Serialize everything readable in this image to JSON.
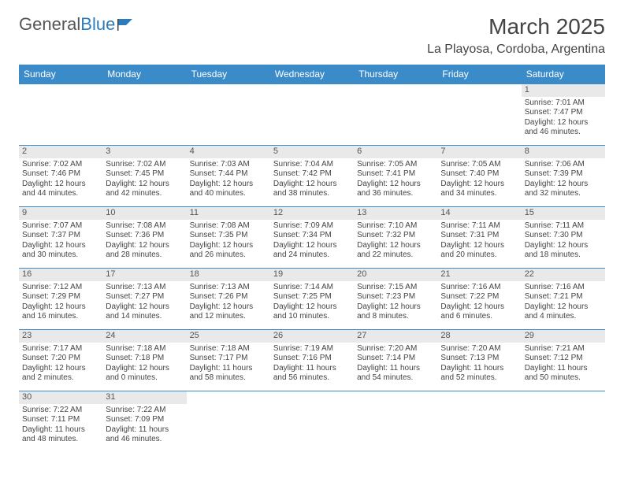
{
  "brand": {
    "part1": "General",
    "part2": "Blue",
    "logo_color": "#2b7bbd"
  },
  "title": "March 2025",
  "location": "La Playosa, Cordoba, Argentina",
  "colors": {
    "header_bg": "#3b8bc9",
    "daynum_bg": "#e9e9e9",
    "border": "#3b8bc9"
  },
  "weekdays": [
    "Sunday",
    "Monday",
    "Tuesday",
    "Wednesday",
    "Thursday",
    "Friday",
    "Saturday"
  ],
  "weeks": [
    [
      null,
      null,
      null,
      null,
      null,
      null,
      {
        "n": "1",
        "sr": "Sunrise: 7:01 AM",
        "ss": "Sunset: 7:47 PM",
        "dl": "Daylight: 12 hours and 46 minutes."
      }
    ],
    [
      {
        "n": "2",
        "sr": "Sunrise: 7:02 AM",
        "ss": "Sunset: 7:46 PM",
        "dl": "Daylight: 12 hours and 44 minutes."
      },
      {
        "n": "3",
        "sr": "Sunrise: 7:02 AM",
        "ss": "Sunset: 7:45 PM",
        "dl": "Daylight: 12 hours and 42 minutes."
      },
      {
        "n": "4",
        "sr": "Sunrise: 7:03 AM",
        "ss": "Sunset: 7:44 PM",
        "dl": "Daylight: 12 hours and 40 minutes."
      },
      {
        "n": "5",
        "sr": "Sunrise: 7:04 AM",
        "ss": "Sunset: 7:42 PM",
        "dl": "Daylight: 12 hours and 38 minutes."
      },
      {
        "n": "6",
        "sr": "Sunrise: 7:05 AM",
        "ss": "Sunset: 7:41 PM",
        "dl": "Daylight: 12 hours and 36 minutes."
      },
      {
        "n": "7",
        "sr": "Sunrise: 7:05 AM",
        "ss": "Sunset: 7:40 PM",
        "dl": "Daylight: 12 hours and 34 minutes."
      },
      {
        "n": "8",
        "sr": "Sunrise: 7:06 AM",
        "ss": "Sunset: 7:39 PM",
        "dl": "Daylight: 12 hours and 32 minutes."
      }
    ],
    [
      {
        "n": "9",
        "sr": "Sunrise: 7:07 AM",
        "ss": "Sunset: 7:37 PM",
        "dl": "Daylight: 12 hours and 30 minutes."
      },
      {
        "n": "10",
        "sr": "Sunrise: 7:08 AM",
        "ss": "Sunset: 7:36 PM",
        "dl": "Daylight: 12 hours and 28 minutes."
      },
      {
        "n": "11",
        "sr": "Sunrise: 7:08 AM",
        "ss": "Sunset: 7:35 PM",
        "dl": "Daylight: 12 hours and 26 minutes."
      },
      {
        "n": "12",
        "sr": "Sunrise: 7:09 AM",
        "ss": "Sunset: 7:34 PM",
        "dl": "Daylight: 12 hours and 24 minutes."
      },
      {
        "n": "13",
        "sr": "Sunrise: 7:10 AM",
        "ss": "Sunset: 7:32 PM",
        "dl": "Daylight: 12 hours and 22 minutes."
      },
      {
        "n": "14",
        "sr": "Sunrise: 7:11 AM",
        "ss": "Sunset: 7:31 PM",
        "dl": "Daylight: 12 hours and 20 minutes."
      },
      {
        "n": "15",
        "sr": "Sunrise: 7:11 AM",
        "ss": "Sunset: 7:30 PM",
        "dl": "Daylight: 12 hours and 18 minutes."
      }
    ],
    [
      {
        "n": "16",
        "sr": "Sunrise: 7:12 AM",
        "ss": "Sunset: 7:29 PM",
        "dl": "Daylight: 12 hours and 16 minutes."
      },
      {
        "n": "17",
        "sr": "Sunrise: 7:13 AM",
        "ss": "Sunset: 7:27 PM",
        "dl": "Daylight: 12 hours and 14 minutes."
      },
      {
        "n": "18",
        "sr": "Sunrise: 7:13 AM",
        "ss": "Sunset: 7:26 PM",
        "dl": "Daylight: 12 hours and 12 minutes."
      },
      {
        "n": "19",
        "sr": "Sunrise: 7:14 AM",
        "ss": "Sunset: 7:25 PM",
        "dl": "Daylight: 12 hours and 10 minutes."
      },
      {
        "n": "20",
        "sr": "Sunrise: 7:15 AM",
        "ss": "Sunset: 7:23 PM",
        "dl": "Daylight: 12 hours and 8 minutes."
      },
      {
        "n": "21",
        "sr": "Sunrise: 7:16 AM",
        "ss": "Sunset: 7:22 PM",
        "dl": "Daylight: 12 hours and 6 minutes."
      },
      {
        "n": "22",
        "sr": "Sunrise: 7:16 AM",
        "ss": "Sunset: 7:21 PM",
        "dl": "Daylight: 12 hours and 4 minutes."
      }
    ],
    [
      {
        "n": "23",
        "sr": "Sunrise: 7:17 AM",
        "ss": "Sunset: 7:20 PM",
        "dl": "Daylight: 12 hours and 2 minutes."
      },
      {
        "n": "24",
        "sr": "Sunrise: 7:18 AM",
        "ss": "Sunset: 7:18 PM",
        "dl": "Daylight: 12 hours and 0 minutes."
      },
      {
        "n": "25",
        "sr": "Sunrise: 7:18 AM",
        "ss": "Sunset: 7:17 PM",
        "dl": "Daylight: 11 hours and 58 minutes."
      },
      {
        "n": "26",
        "sr": "Sunrise: 7:19 AM",
        "ss": "Sunset: 7:16 PM",
        "dl": "Daylight: 11 hours and 56 minutes."
      },
      {
        "n": "27",
        "sr": "Sunrise: 7:20 AM",
        "ss": "Sunset: 7:14 PM",
        "dl": "Daylight: 11 hours and 54 minutes."
      },
      {
        "n": "28",
        "sr": "Sunrise: 7:20 AM",
        "ss": "Sunset: 7:13 PM",
        "dl": "Daylight: 11 hours and 52 minutes."
      },
      {
        "n": "29",
        "sr": "Sunrise: 7:21 AM",
        "ss": "Sunset: 7:12 PM",
        "dl": "Daylight: 11 hours and 50 minutes."
      }
    ],
    [
      {
        "n": "30",
        "sr": "Sunrise: 7:22 AM",
        "ss": "Sunset: 7:11 PM",
        "dl": "Daylight: 11 hours and 48 minutes."
      },
      {
        "n": "31",
        "sr": "Sunrise: 7:22 AM",
        "ss": "Sunset: 7:09 PM",
        "dl": "Daylight: 11 hours and 46 minutes."
      },
      null,
      null,
      null,
      null,
      null
    ]
  ]
}
